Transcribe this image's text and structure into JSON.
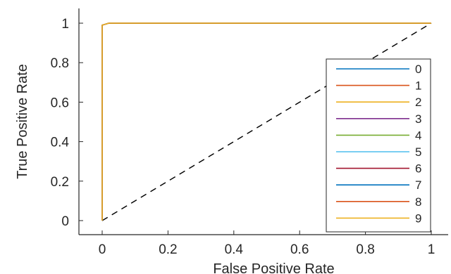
{
  "chart_data": {
    "type": "line",
    "xlabel": "False Positive Rate",
    "ylabel": "True Positive Rate",
    "xlim": [
      0,
      1
    ],
    "ylim": [
      0,
      1
    ],
    "xticks": [
      0,
      0.2,
      0.4,
      0.6,
      0.8,
      1
    ],
    "xtick_labels": [
      "0",
      "0.2",
      "0.4",
      "0.6",
      "0.8",
      "1"
    ],
    "yticks": [
      0,
      0.2,
      0.4,
      0.6,
      0.8,
      1
    ],
    "ytick_labels": [
      "0",
      "0.2",
      "0.4",
      "0.6",
      "0.8",
      "1"
    ],
    "grid": false,
    "legend_position": "right",
    "reference_line": {
      "x": [
        0,
        1
      ],
      "y": [
        0,
        1
      ],
      "style": "dashed",
      "color": "#000000"
    },
    "series": [
      {
        "name": "0",
        "color": "#0072BD",
        "x": [
          0,
          0,
          0.02,
          1
        ],
        "y": [
          0,
          0.99,
          1,
          1
        ]
      },
      {
        "name": "1",
        "color": "#D95319",
        "x": [
          0,
          0,
          0.02,
          1
        ],
        "y": [
          0,
          0.99,
          1,
          1
        ]
      },
      {
        "name": "2",
        "color": "#EDB120",
        "x": [
          0,
          0,
          0.02,
          1
        ],
        "y": [
          0,
          0.99,
          1,
          1
        ]
      },
      {
        "name": "3",
        "color": "#7E2F8E",
        "x": [
          0,
          0,
          0.02,
          1
        ],
        "y": [
          0,
          0.99,
          1,
          1
        ]
      },
      {
        "name": "4",
        "color": "#77AC30",
        "x": [
          0,
          0,
          0.02,
          1
        ],
        "y": [
          0,
          0.99,
          1,
          1
        ]
      },
      {
        "name": "5",
        "color": "#4DBEEE",
        "x": [
          0,
          0,
          0.02,
          1
        ],
        "y": [
          0,
          0.99,
          1,
          1
        ]
      },
      {
        "name": "6",
        "color": "#A2142F",
        "x": [
          0,
          0,
          0.02,
          1
        ],
        "y": [
          0,
          0.99,
          1,
          1
        ]
      },
      {
        "name": "7",
        "color": "#0072BD",
        "x": [
          0,
          0,
          0.02,
          1
        ],
        "y": [
          0,
          0.99,
          1,
          1
        ]
      },
      {
        "name": "8",
        "color": "#D95319",
        "x": [
          0,
          0,
          0.02,
          1
        ],
        "y": [
          0,
          0.99,
          1,
          1
        ]
      },
      {
        "name": "9",
        "color": "#EDB120",
        "x": [
          0,
          0,
          0.02,
          1
        ],
        "y": [
          0,
          0.99,
          1,
          1
        ]
      }
    ]
  }
}
